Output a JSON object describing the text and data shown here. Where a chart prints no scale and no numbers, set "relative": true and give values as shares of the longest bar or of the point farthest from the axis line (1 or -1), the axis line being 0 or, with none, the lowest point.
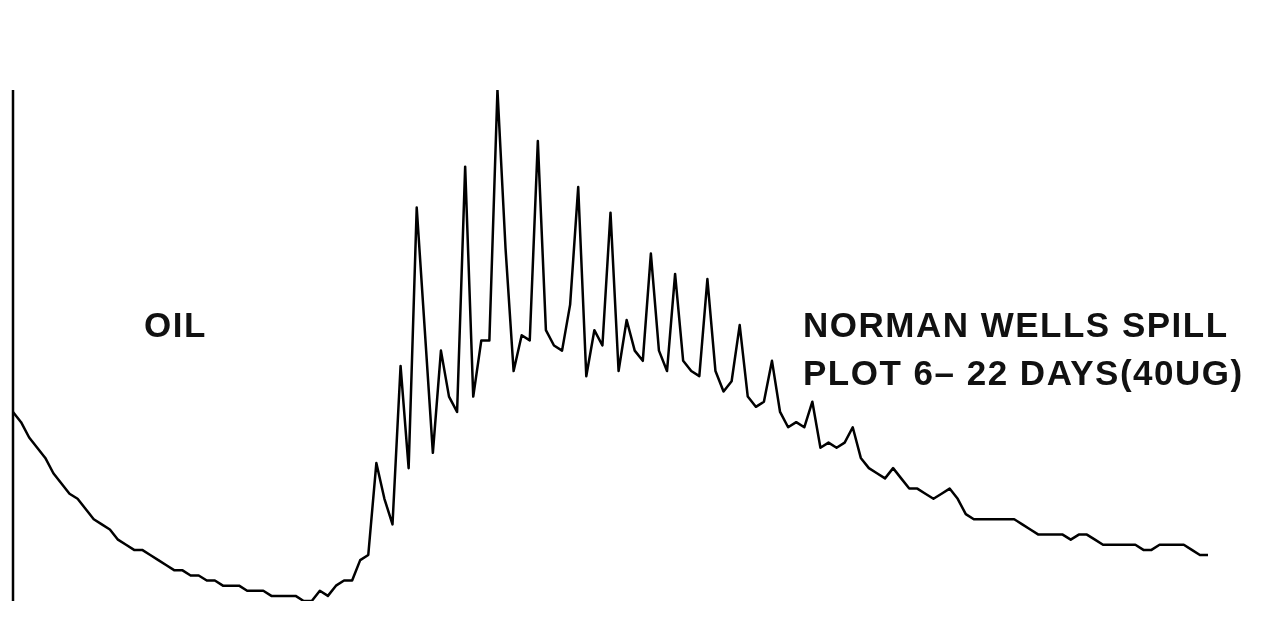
{
  "chart_data": {
    "type": "line",
    "relative": true,
    "categories": [
      null,
      null,
      null,
      null,
      null,
      null,
      null,
      null,
      null,
      null,
      null,
      null,
      null,
      null,
      null,
      null,
      null,
      null,
      null,
      null,
      null,
      null,
      null,
      null,
      null,
      null,
      null,
      null,
      null,
      null,
      null,
      null,
      null,
      null,
      null,
      null,
      null,
      null,
      null,
      null,
      null,
      null,
      null,
      null,
      null,
      null,
      null,
      null,
      null,
      null,
      null,
      null,
      null,
      null,
      null,
      null,
      null,
      null,
      null,
      null,
      null,
      null,
      null,
      null,
      null,
      null,
      null,
      null,
      null,
      null,
      null,
      null,
      null,
      null,
      null,
      null,
      null,
      null,
      null,
      null,
      null,
      null,
      null,
      null,
      null,
      null,
      null,
      null,
      null,
      null,
      null,
      null,
      null,
      null,
      null,
      null,
      null,
      null,
      null,
      null,
      null,
      null,
      null,
      null,
      null,
      null,
      null,
      null,
      null,
      null,
      null,
      null,
      null,
      null,
      null,
      null,
      null,
      null,
      null,
      null,
      null,
      null,
      null,
      null,
      null,
      null,
      null,
      null,
      null,
      null,
      null,
      null,
      null,
      null,
      null,
      null,
      null,
      null,
      null,
      null,
      null,
      null,
      null,
      null,
      null,
      null,
      null,
      null,
      null
    ],
    "series": [
      {
        "color": "#000000",
        "values": [
          0.37,
          0.35,
          0.32,
          0.3,
          0.28,
          0.25,
          0.23,
          0.21,
          0.2,
          0.18,
          0.16,
          0.15,
          0.14,
          0.12,
          0.11,
          0.1,
          0.1,
          0.09,
          0.08,
          0.07,
          0.06,
          0.06,
          0.05,
          0.05,
          0.04,
          0.04,
          0.03,
          0.03,
          0.03,
          0.02,
          0.02,
          0.02,
          0.01,
          0.01,
          0.01,
          0.01,
          0.0,
          0,
          0.02,
          0.01,
          0.03,
          0.04,
          0.04,
          0.08,
          0.09,
          0.27,
          0.2,
          0.15,
          0.46,
          0.26,
          0.77,
          0.53,
          0.29,
          0.49,
          0.4,
          0.37,
          0.85,
          0.4,
          0.51,
          0.51,
          1,
          0.69,
          0.45,
          0.52,
          0.51,
          0.9,
          0.53,
          0.5,
          0.49,
          0.58,
          0.81,
          0.44,
          0.53,
          0.5,
          0.76,
          0.45,
          0.55,
          0.49,
          0.47,
          0.68,
          0.49,
          0.45,
          0.64,
          0.47,
          0.45,
          0.44,
          0.63,
          0.45,
          0.41,
          0.43,
          0.54,
          0.4,
          0.38,
          0.39,
          0.47,
          0.37,
          0.34,
          0.35,
          0.34,
          0.39,
          0.3,
          0.31,
          0.3,
          0.31,
          0.34,
          0.28,
          0.26,
          0.25,
          0.24,
          0.26,
          0.24,
          0.22,
          0.22,
          0.21,
          0.2,
          0.21,
          0.22,
          0.2,
          0.17,
          0.16,
          0.16,
          0.16,
          0.16,
          0.16,
          0.16,
          0.15,
          0.14,
          0.13,
          0.13,
          0.13,
          0.13,
          0.12,
          0.13,
          0.13,
          0.12,
          0.11,
          0.11,
          0.11,
          0.11,
          0.11,
          0.1,
          0.1,
          0.11,
          0.11,
          0.11,
          0.11,
          0.1,
          0.09,
          0.09
        ]
      }
    ],
    "annotations": [
      "OIL",
      "NORMAN WELLS SPILL",
      "PLOT 6– 22 DAYS(40UG)"
    ]
  }
}
